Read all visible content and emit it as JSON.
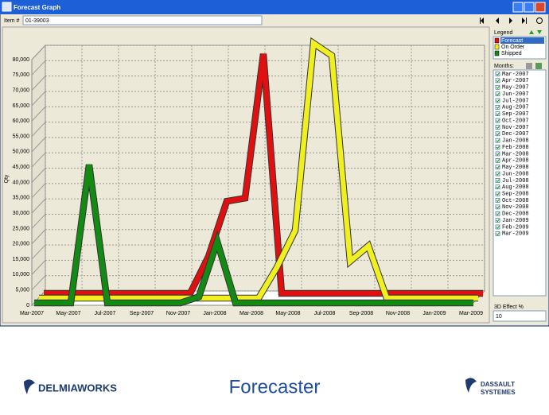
{
  "window": {
    "title": "Forecast Graph"
  },
  "toolbar": {
    "item_label": "Item #",
    "item_value": "01-39003"
  },
  "chart_data": {
    "type": "line",
    "y_label": "Qty",
    "legend_title": "Legend",
    "categories": [
      "Mar-2007",
      null,
      "May-2007",
      null,
      "Jul-2007",
      null,
      "Sep-2007",
      null,
      "Nov-2007",
      null,
      "Jan-2008",
      null,
      "Mar-2008",
      null,
      "May-2008",
      null,
      "Jul-2008",
      null,
      "Sep-2008",
      null,
      "Nov-2008",
      null,
      "Jan-2009",
      null,
      "Mar-2009"
    ],
    "series": [
      {
        "name": "Forecast",
        "color": "#e01010",
        "values": [
          0,
          0,
          0,
          0,
          0,
          0,
          0,
          0,
          0,
          12000,
          30000,
          31000,
          78000,
          0,
          0,
          0,
          0,
          0,
          0,
          0,
          0,
          0,
          0,
          0,
          0
        ]
      },
      {
        "name": "On Order",
        "color": "#f0f020",
        "values": [
          0,
          0,
          0,
          0,
          0,
          0,
          0,
          0,
          0,
          0,
          0,
          0,
          0,
          10000,
          22000,
          83000,
          79000,
          12000,
          17000,
          0,
          0,
          0,
          0,
          0,
          0
        ]
      },
      {
        "name": "Shipped",
        "color": "#138a13",
        "values": [
          0,
          0,
          0,
          45000,
          0,
          0,
          0,
          0,
          0,
          2000,
          20000,
          0,
          0,
          0,
          0,
          0,
          0,
          0,
          0,
          0,
          0,
          0,
          0,
          0,
          0
        ]
      }
    ],
    "ylim": [
      0,
      80000
    ],
    "yticks": [
      0,
      {
        "value": 5000,
        "label": "5,000"
      },
      {
        "value": 10000,
        "label": "10,000"
      },
      {
        "value": 15000,
        "label": "15,000"
      },
      {
        "value": 20000,
        "label": "20,000"
      },
      {
        "value": 25000,
        "label": "25,000"
      },
      {
        "value": 30000,
        "label": "30,000"
      },
      {
        "value": 35000,
        "label": "35,000"
      },
      {
        "value": 40000,
        "label": "40,000"
      },
      {
        "value": 45000,
        "label": "45,000"
      },
      {
        "value": 50000,
        "label": "50,000"
      },
      {
        "value": 55000,
        "label": "55,000"
      },
      {
        "value": 60000,
        "label": "60,000"
      },
      {
        "value": 65000,
        "label": "65,000"
      },
      {
        "value": 70000,
        "label": "70,000"
      },
      {
        "value": 75000,
        "label": "75,000"
      },
      {
        "value": 80000,
        "label": "80,000"
      }
    ],
    "grid": true
  },
  "months_panel": {
    "title": "Months:",
    "months": [
      "Mar-2007",
      "Apr-2007",
      "May-2007",
      "Jun-2007",
      "Jul-2007",
      "Aug-2007",
      "Sep-2007",
      "Oct-2007",
      "Nov-2007",
      "Dec-2007",
      "Jan-2008",
      "Feb-2008",
      "Mar-2008",
      "Apr-2008",
      "May-2008",
      "Jun-2008",
      "Jul-2008",
      "Aug-2008",
      "Sep-2008",
      "Oct-2008",
      "Nov-2008",
      "Dec-2008",
      "Jan-2009",
      "Feb-2009",
      "Mar-2009"
    ]
  },
  "effect_panel": {
    "label": "3D Effect %",
    "value": 10
  },
  "footer": {
    "left_logo": "DELMIAWORKS",
    "title": "Forecaster",
    "right_logo": [
      "DASSAULT",
      "SYSTEMES"
    ]
  }
}
